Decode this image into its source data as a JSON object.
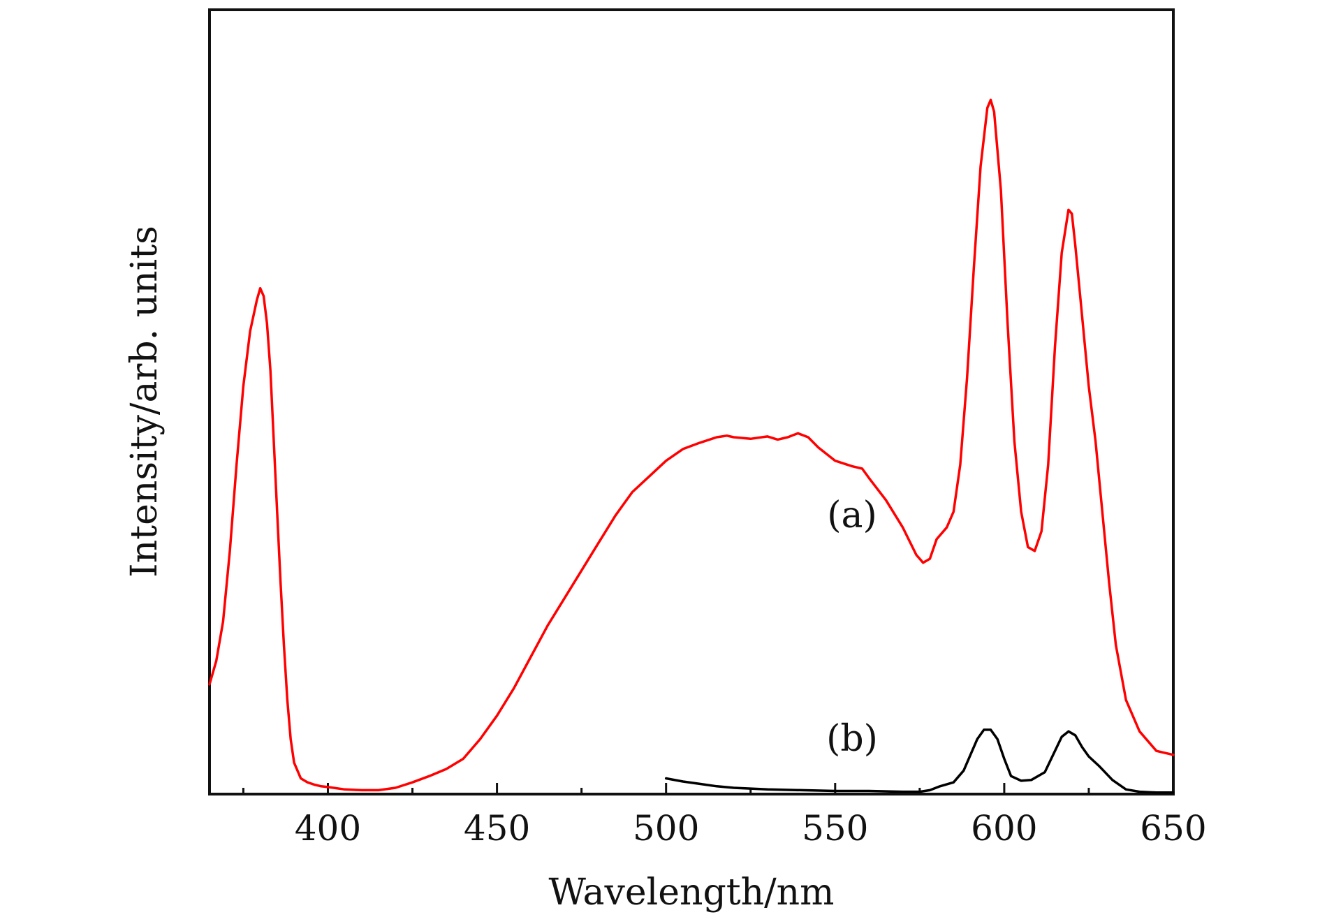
{
  "chart_data": {
    "type": "line",
    "title": "",
    "xlabel": "Wavelength/nm",
    "ylabel": "Intensity/arb. units",
    "xlim": [
      365,
      650
    ],
    "ylim": [
      0,
      100
    ],
    "x_ticks": [
      400,
      450,
      500,
      550,
      600,
      650
    ],
    "x_minor_ticks": [
      375,
      425,
      475,
      525,
      575,
      625
    ],
    "y_ticks_shown": false,
    "grid": false,
    "legend": "none",
    "series": [
      {
        "label": "(a)",
        "color": "#ff0000",
        "points": [
          [
            365,
            14
          ],
          [
            367,
            17
          ],
          [
            369,
            22
          ],
          [
            371,
            31
          ],
          [
            373,
            42
          ],
          [
            375,
            52
          ],
          [
            377,
            59
          ],
          [
            379,
            63
          ],
          [
            380,
            64.5
          ],
          [
            381,
            63.5
          ],
          [
            382,
            60
          ],
          [
            383,
            54
          ],
          [
            384,
            45
          ],
          [
            385,
            36
          ],
          [
            386,
            27
          ],
          [
            387,
            19
          ],
          [
            388,
            12
          ],
          [
            389,
            7
          ],
          [
            390,
            4
          ],
          [
            392,
            2
          ],
          [
            394,
            1.5
          ],
          [
            396,
            1.2
          ],
          [
            398,
            1.0
          ],
          [
            400,
            0.9
          ],
          [
            405,
            0.6
          ],
          [
            410,
            0.5
          ],
          [
            415,
            0.5
          ],
          [
            420,
            0.8
          ],
          [
            425,
            1.5
          ],
          [
            430,
            2.3
          ],
          [
            435,
            3.2
          ],
          [
            440,
            4.5
          ],
          [
            445,
            7
          ],
          [
            450,
            10
          ],
          [
            455,
            13.5
          ],
          [
            460,
            17.5
          ],
          [
            465,
            21.5
          ],
          [
            470,
            25
          ],
          [
            475,
            28.5
          ],
          [
            480,
            32
          ],
          [
            485,
            35.5
          ],
          [
            490,
            38.5
          ],
          [
            495,
            40.5
          ],
          [
            500,
            42.5
          ],
          [
            505,
            44
          ],
          [
            510,
            44.8
          ],
          [
            515,
            45.5
          ],
          [
            518,
            45.7
          ],
          [
            520,
            45.5
          ],
          [
            525,
            45.3
          ],
          [
            530,
            45.6
          ],
          [
            533,
            45.2
          ],
          [
            536,
            45.5
          ],
          [
            539,
            46
          ],
          [
            542,
            45.5
          ],
          [
            545,
            44.2
          ],
          [
            550,
            42.5
          ],
          [
            555,
            41.8
          ],
          [
            558,
            41.5
          ],
          [
            560,
            40.3
          ],
          [
            565,
            37.5
          ],
          [
            570,
            34
          ],
          [
            574,
            30.5
          ],
          [
            576,
            29.5
          ],
          [
            578,
            30
          ],
          [
            580,
            32.5
          ],
          [
            583,
            34
          ],
          [
            585,
            36
          ],
          [
            587,
            42
          ],
          [
            589,
            53
          ],
          [
            591,
            67
          ],
          [
            593,
            80
          ],
          [
            595,
            87.5
          ],
          [
            596,
            88.5
          ],
          [
            597,
            87
          ],
          [
            599,
            77
          ],
          [
            601,
            60
          ],
          [
            603,
            45
          ],
          [
            605,
            36
          ],
          [
            607,
            31.5
          ],
          [
            609,
            31
          ],
          [
            611,
            33.5
          ],
          [
            613,
            42
          ],
          [
            615,
            57
          ],
          [
            617,
            69
          ],
          [
            619,
            74.5
          ],
          [
            620,
            74
          ],
          [
            621,
            70
          ],
          [
            623,
            61
          ],
          [
            625,
            52
          ],
          [
            627,
            45
          ],
          [
            629,
            36
          ],
          [
            631,
            27
          ],
          [
            633,
            19
          ],
          [
            636,
            12
          ],
          [
            640,
            8
          ],
          [
            645,
            5.5
          ],
          [
            650,
            5
          ]
        ]
      },
      {
        "label": "(b)",
        "color": "#000000",
        "points": [
          [
            500,
            2
          ],
          [
            505,
            1.6
          ],
          [
            510,
            1.3
          ],
          [
            515,
            1.0
          ],
          [
            520,
            0.8
          ],
          [
            530,
            0.6
          ],
          [
            540,
            0.5
          ],
          [
            550,
            0.4
          ],
          [
            560,
            0.4
          ],
          [
            570,
            0.3
          ],
          [
            575,
            0.3
          ],
          [
            578,
            0.5
          ],
          [
            581,
            1.0
          ],
          [
            585,
            1.5
          ],
          [
            588,
            3.0
          ],
          [
            590,
            5.0
          ],
          [
            592,
            7.0
          ],
          [
            594,
            8.2
          ],
          [
            596,
            8.2
          ],
          [
            598,
            7.0
          ],
          [
            600,
            4.5
          ],
          [
            602,
            2.3
          ],
          [
            605,
            1.7
          ],
          [
            608,
            1.8
          ],
          [
            612,
            2.8
          ],
          [
            615,
            5.5
          ],
          [
            617,
            7.3
          ],
          [
            619,
            8.0
          ],
          [
            621,
            7.5
          ],
          [
            623,
            6.0
          ],
          [
            625,
            4.8
          ],
          [
            628,
            3.6
          ],
          [
            632,
            1.8
          ],
          [
            636,
            0.6
          ],
          [
            640,
            0.3
          ],
          [
            645,
            0.2
          ],
          [
            650,
            0.2
          ]
        ]
      }
    ],
    "annotations": [
      {
        "text": "(a)",
        "x": 555,
        "y": 34
      },
      {
        "text": "(b)",
        "x": 555,
        "y": 5.5
      }
    ]
  }
}
